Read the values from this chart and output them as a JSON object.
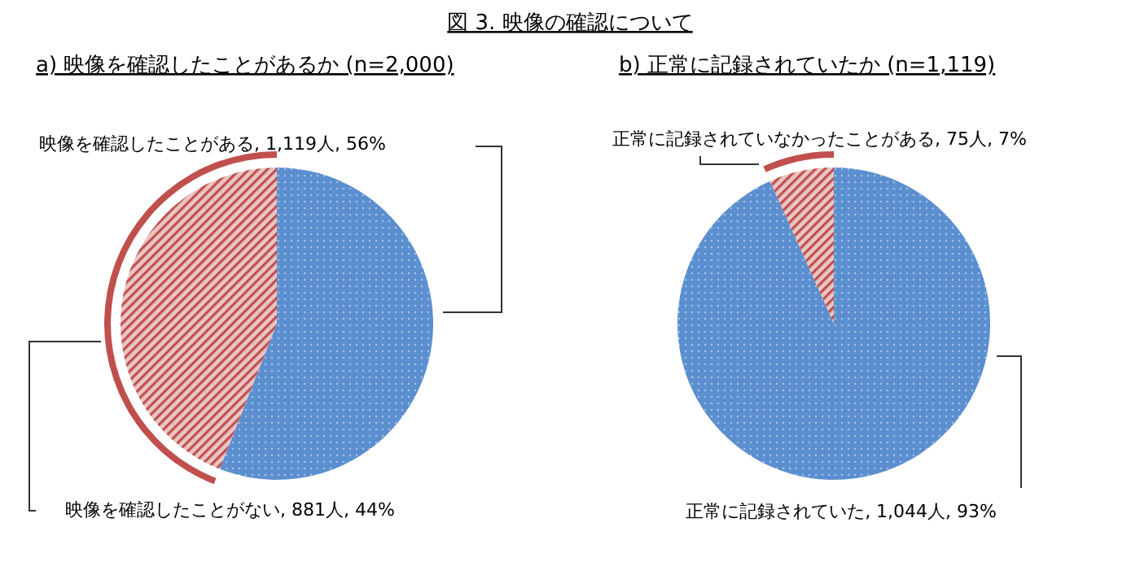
{
  "chart_data": [
    {
      "type": "pie",
      "title": "図 3. 映像の確認について",
      "subtitle": "a) 映像を確認したことがあるか (n=2,000)",
      "categories": [
        "映像を確認したことがある",
        "映像を確認したことがない"
      ],
      "values": [
        1119,
        881
      ],
      "value_labels": [
        ", 1,119人, 56%",
        ", 881人, 44%"
      ],
      "colors": [
        "#5b8fd0",
        "#c0504d"
      ]
    },
    {
      "type": "pie",
      "title": "b) 正常に記録されていたか (n=1,119)",
      "categories": [
        "正常に記録されていた",
        "正常に記録されていなかったことがある"
      ],
      "values": [
        1044,
        75
      ],
      "value_labels": [
        ", 1,044人, 93%",
        ", 75人, 7%"
      ],
      "colors": [
        "#5b8fd0",
        "#c0504d"
      ]
    }
  ]
}
